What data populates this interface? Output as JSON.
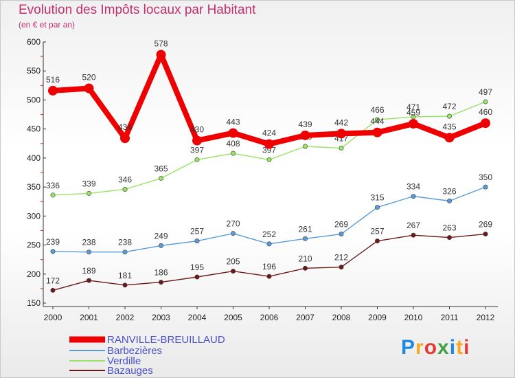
{
  "title": "Evolution des Impôts locaux par Habitant",
  "subtitle": "(en € et par an)",
  "logo": "Proxiti",
  "chart_data": {
    "type": "line",
    "x": [
      "2000",
      "2001",
      "2002",
      "2003",
      "2004",
      "2005",
      "2006",
      "2007",
      "2008",
      "2009",
      "2010",
      "2011",
      "2012"
    ],
    "ylim": [
      150,
      600
    ],
    "yticks": [
      150,
      200,
      250,
      300,
      350,
      400,
      450,
      500,
      550,
      600
    ],
    "grid": false,
    "legend_position": "bottom-left",
    "series": [
      {
        "name": "RANVILLE-BREUILLAUD",
        "color": "#ee0000",
        "values": [
          516,
          520,
          434,
          578,
          430,
          443,
          424,
          439,
          442,
          444,
          459,
          435,
          460
        ]
      },
      {
        "name": "Barbezières",
        "color": "#5b9bd5",
        "values": [
          239,
          238,
          238,
          249,
          257,
          270,
          252,
          261,
          269,
          315,
          334,
          326,
          350
        ]
      },
      {
        "name": "Verdille",
        "color": "#99e266",
        "values": [
          336,
          339,
          346,
          365,
          397,
          408,
          397,
          420,
          417,
          466,
          471,
          472,
          497
        ]
      },
      {
        "name": "Bazauges",
        "color": "#6b1a1a",
        "values": [
          172,
          189,
          181,
          186,
          195,
          205,
          196,
          210,
          212,
          257,
          267,
          263,
          269
        ]
      }
    ]
  }
}
